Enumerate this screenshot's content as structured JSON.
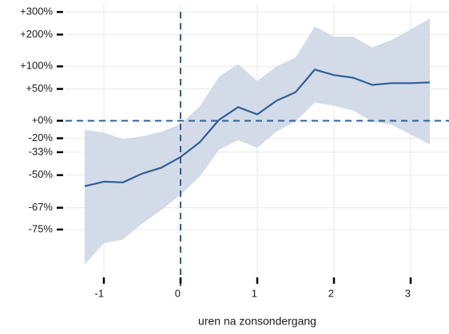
{
  "chart_data": {
    "type": "line",
    "x_label": "uren na zonsondergang",
    "x": [
      -1.25,
      -1.0,
      -0.75,
      -0.5,
      -0.25,
      0,
      0.25,
      0.5,
      0.75,
      1.0,
      1.25,
      1.5,
      1.75,
      2.0,
      2.25,
      2.5,
      2.75,
      3.0,
      3.25
    ],
    "values": [
      -56.6,
      -54,
      -54.4,
      -49,
      -45,
      -37,
      -24,
      1,
      19,
      8.5,
      29,
      44,
      92,
      79,
      73,
      58,
      61.5,
      61.5,
      63
    ],
    "upper": [
      -11,
      -14,
      -21,
      -18,
      -13,
      -4,
      20,
      75,
      106,
      66,
      100,
      124,
      233,
      192,
      192,
      155,
      180,
      220,
      268
    ],
    "lower": [
      -84,
      -79,
      -78,
      -73,
      -68,
      -61,
      -51,
      -31,
      -22,
      -29,
      -13,
      -1,
      26,
      21,
      14,
      -1,
      -5,
      -16,
      -26
    ],
    "color": "#2f5f98",
    "band_color": "#d3dbe8",
    "yscale": "log-ratio",
    "xlim": [
      -1.5,
      3.5
    ],
    "xticks": [
      -1,
      0,
      1,
      2,
      3
    ],
    "ylim": [
      -86,
      343
    ],
    "yticks": [
      {
        "value": 300,
        "label": "+300%"
      },
      {
        "value": 200,
        "label": "+200%"
      },
      {
        "value": 100,
        "label": "+100%"
      },
      {
        "value": 50,
        "label": "+50%"
      },
      {
        "value": 0,
        "label": "+0%"
      },
      {
        "value": -20,
        "label": "-20%"
      },
      {
        "value": -33,
        "label": "-33%"
      },
      {
        "value": -50,
        "label": "-50%"
      },
      {
        "value": -67,
        "label": "-67%"
      },
      {
        "value": -75,
        "label": "-75%"
      }
    ],
    "hline": 0,
    "vline": 0,
    "grid": true
  }
}
